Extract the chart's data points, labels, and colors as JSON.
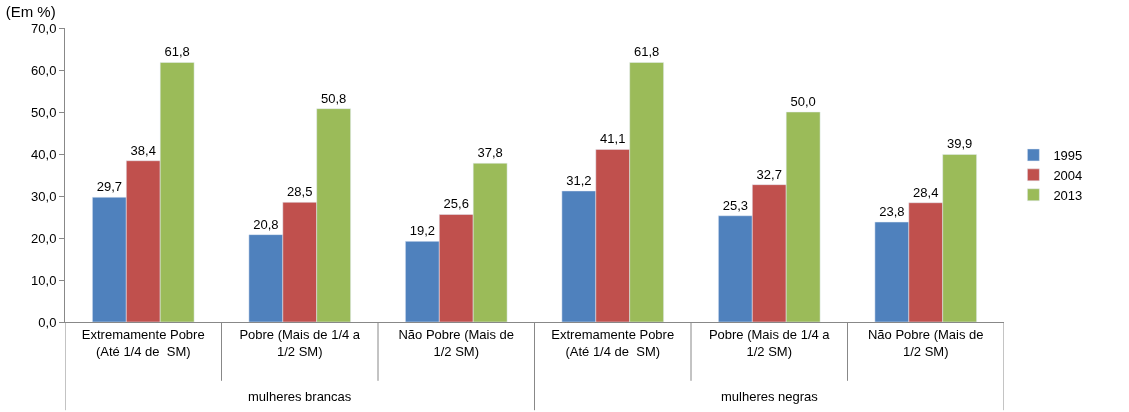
{
  "chart_data": {
    "type": "bar",
    "title": "(Em %)",
    "categories": [
      "Extremamente Pobre (Até 1/4 de  SM)",
      "Pobre (Mais de 1/4 a 1/2 SM)",
      "Não Pobre (Mais de 1/2 SM)",
      "Extremamente Pobre (Até 1/4 de  SM)",
      "Pobre (Mais de 1/4 a 1/2 SM)",
      "Não Pobre (Mais de 1/2 SM)"
    ],
    "series": [
      {
        "name": "1995",
        "color": "#4f81bd",
        "values": [
          29.7,
          20.8,
          19.2,
          31.2,
          25.3,
          23.8
        ],
        "value_labels": [
          "29,7",
          "20,8",
          "19,2",
          "31,2",
          "25,3",
          "23,8"
        ]
      },
      {
        "name": "2004",
        "color": "#c0504d",
        "values": [
          38.4,
          28.5,
          25.6,
          41.1,
          32.7,
          28.4
        ],
        "value_labels": [
          "38,4",
          "28,5",
          "25,6",
          "41,1",
          "32,7",
          "28,4"
        ]
      },
      {
        "name": "2013",
        "color": "#9bbb59",
        "values": [
          61.8,
          50.8,
          37.8,
          61.8,
          50.0,
          39.9
        ],
        "value_labels": [
          "61,8",
          "50,8",
          "37,8",
          "61,8",
          "50,0",
          "39,9"
        ]
      }
    ],
    "annotations": [
      "mulheres brancas",
      "mulheres negras"
    ],
    "ylim": [
      0,
      70
    ],
    "yticks": [
      {
        "value": 0,
        "label": "0,0"
      },
      {
        "value": 10,
        "label": "10,0"
      },
      {
        "value": 20,
        "label": "20,0"
      },
      {
        "value": 30,
        "label": "30,0"
      },
      {
        "value": 40,
        "label": "40,0"
      },
      {
        "value": 50,
        "label": "50,0"
      },
      {
        "value": 60,
        "label": "60,0"
      },
      {
        "value": 70,
        "label": "70,0"
      }
    ],
    "legend": "right"
  }
}
